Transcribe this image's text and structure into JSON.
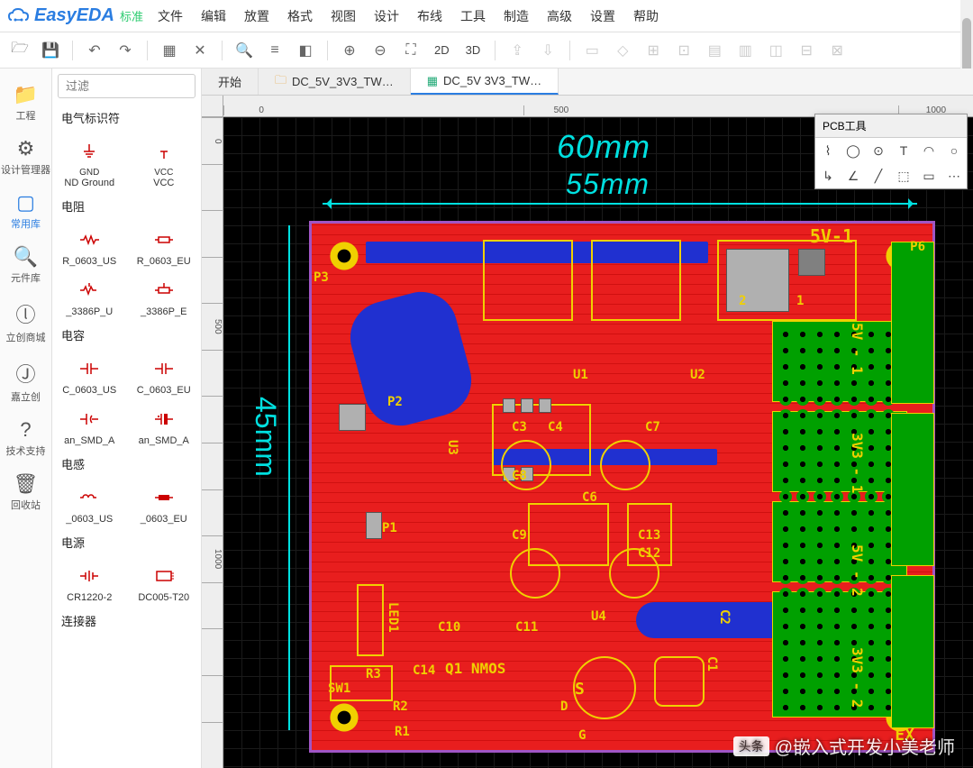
{
  "app": {
    "logo": "EasyEDA",
    "mode": "标准"
  },
  "menu": [
    "文件",
    "编辑",
    "放置",
    "格式",
    "视图",
    "设计",
    "布线",
    "工具",
    "制造",
    "高级",
    "设置",
    "帮助"
  ],
  "toolbar": {
    "mode2d": "2D",
    "mode3d": "3D"
  },
  "vbar": [
    {
      "icon": "📁",
      "label": "工程"
    },
    {
      "icon": "⚙",
      "label": "设计管理器"
    },
    {
      "icon": "▢",
      "label": "常用库",
      "active": true
    },
    {
      "icon": "🔍",
      "label": "元件库"
    },
    {
      "icon": "ⓛ",
      "label": "立创商城"
    },
    {
      "icon": "Ⓙ",
      "label": "嘉立创"
    },
    {
      "icon": "?",
      "label": "技术支持"
    },
    {
      "icon": "🗑",
      "label": "回收站"
    }
  ],
  "filter_placeholder": "过滤",
  "lib": [
    {
      "cat": "电气标识符",
      "items": [
        {
          "sym": "gnd",
          "name": "ND Ground",
          "top": "GND"
        },
        {
          "sym": "vcc",
          "name": "VCC",
          "top": "VCC"
        }
      ]
    },
    {
      "cat": "电阻",
      "items": [
        {
          "sym": "res",
          "name": "R_0603_US"
        },
        {
          "sym": "res2",
          "name": "R_0603_EU"
        }
      ]
    },
    {
      "cat": "",
      "items": [
        {
          "sym": "pot",
          "name": "_3386P_U"
        },
        {
          "sym": "pot2",
          "name": "_3386P_E"
        }
      ]
    },
    {
      "cat": "电容",
      "items": [
        {
          "sym": "cap",
          "name": "C_0603_US"
        },
        {
          "sym": "cap2",
          "name": "C_0603_EU"
        }
      ]
    },
    {
      "cat": "",
      "items": [
        {
          "sym": "capp",
          "name": "an_SMD_A"
        },
        {
          "sym": "capp2",
          "name": "an_SMD_A"
        }
      ]
    },
    {
      "cat": "电感",
      "items": [
        {
          "sym": "ind",
          "name": "_0603_US"
        },
        {
          "sym": "ind2",
          "name": "_0603_EU"
        }
      ]
    },
    {
      "cat": "电源",
      "items": [
        {
          "sym": "bat",
          "name": "CR1220-2"
        },
        {
          "sym": "dc",
          "name": "DC005-T20"
        }
      ]
    },
    {
      "cat": "连接器",
      "items": []
    }
  ],
  "tabs": [
    {
      "label": "开始",
      "icon": ""
    },
    {
      "label": "DC_5V_3V3_TW…",
      "icon": "folder"
    },
    {
      "label": "DC_5V 3V3_TW…",
      "icon": "pcb",
      "active": true
    }
  ],
  "rulerH": [
    "0",
    "",
    "",
    "",
    "500",
    "",
    "",
    "",
    "",
    "1000"
  ],
  "rulerV": [
    "0",
    "",
    "",
    "",
    "500",
    "",
    "",
    "",
    "",
    "1000",
    "",
    "",
    "",
    ""
  ],
  "dims": {
    "w": "60mm",
    "w2": "55mm",
    "h": "45mm"
  },
  "silk": {
    "topRight": "5V-1",
    "p6": "P6",
    "p3": "P3",
    "p2": "P2",
    "p1": "P1",
    "sw1": "SW1",
    "led1": "LED1",
    "u1": "U1",
    "u2": "U2",
    "u3": "U3",
    "u4": "U4",
    "c1": "C1",
    "c2": "C2",
    "c3": "C3",
    "c4": "C4",
    "c6": "C6",
    "c7": "C7",
    "c8": "C8",
    "c9": "C9",
    "c10": "C10",
    "c11": "C11",
    "c12": "C12",
    "c13": "C13",
    "c14": "C14",
    "r1": "R1",
    "r2": "R2",
    "r3": "R3",
    "q1": "Q1 NMOS",
    "g": "G",
    "d": "D",
    "s": "S",
    "n1": "1",
    "n2": "2",
    "ex": "EX",
    "side1": "5V - 1",
    "side2": "3V3 - 1",
    "side3": "5V - 2",
    "side4": "3V3 - 2"
  },
  "pcbtools": {
    "title": "PCB工具"
  },
  "watermark": {
    "logo": "头条",
    "text": "@嵌入式开发小美老师"
  },
  "colors": {
    "pcb_red": "#e81e1e",
    "silk": "#f0d000",
    "cyan": "#00e0e0",
    "copper_green": "#00a000",
    "trace_blue": "#2030d0",
    "outline": "#a055c5"
  }
}
